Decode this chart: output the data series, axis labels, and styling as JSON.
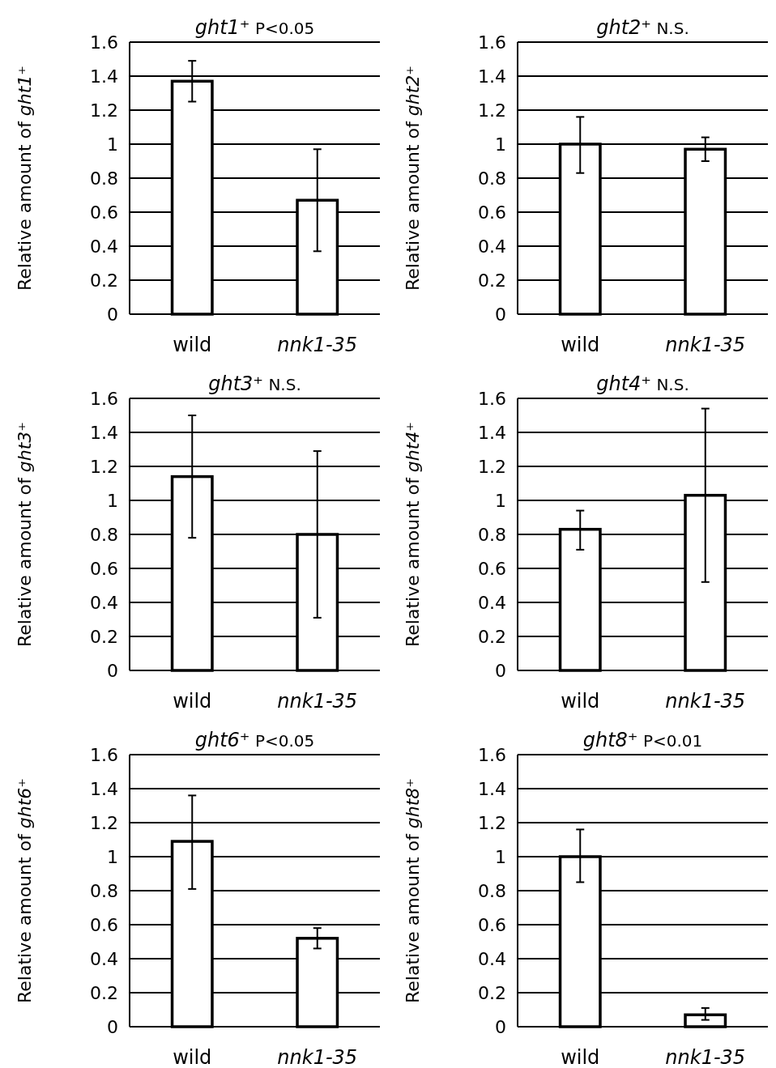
{
  "chart_data": [
    {
      "type": "bar",
      "title": "ght1⁺ P<0.05",
      "ylabel": "Relative amount of ght1⁺",
      "categories": [
        "wild",
        "nnk1-35"
      ],
      "values": [
        1.37,
        0.67
      ],
      "errors": [
        [
          1.25,
          1.49
        ],
        [
          0.37,
          0.97
        ]
      ],
      "color": "#ffffff",
      "ylim": [
        0,
        1.6
      ],
      "yticks": [
        0,
        0.2,
        0.4,
        0.6,
        0.8,
        1,
        1.2,
        1.4,
        1.6
      ],
      "grid": "y"
    },
    {
      "type": "bar",
      "title": "ght2⁺ N.S.",
      "ylabel": "Relative amount of ght2⁺",
      "categories": [
        "wild",
        "nnk1-35"
      ],
      "values": [
        1.0,
        0.97
      ],
      "errors": [
        [
          0.83,
          1.16
        ],
        [
          0.9,
          1.04
        ]
      ],
      "color": "#ffffff",
      "ylim": [
        0,
        1.6
      ],
      "yticks": [
        0,
        0.2,
        0.4,
        0.6,
        0.8,
        1,
        1.2,
        1.4,
        1.6
      ],
      "grid": "y"
    },
    {
      "type": "bar",
      "title": "ght3⁺ N.S.",
      "ylabel": "Relative amount of ght3⁺",
      "categories": [
        "wild",
        "nnk1-35"
      ],
      "values": [
        1.14,
        0.8
      ],
      "errors": [
        [
          0.78,
          1.5
        ],
        [
          0.31,
          1.29
        ]
      ],
      "color": "#ffffff",
      "ylim": [
        0,
        1.6
      ],
      "yticks": [
        0,
        0.2,
        0.4,
        0.6,
        0.8,
        1,
        1.2,
        1.4,
        1.6
      ],
      "grid": "y"
    },
    {
      "type": "bar",
      "title": "ght4⁺ N.S.",
      "ylabel": "Relative amount of ght4⁺",
      "categories": [
        "wild",
        "nnk1-35"
      ],
      "values": [
        0.83,
        1.03
      ],
      "errors": [
        [
          0.71,
          0.94
        ],
        [
          0.52,
          1.54
        ]
      ],
      "color": "#ffffff",
      "ylim": [
        0,
        1.6
      ],
      "yticks": [
        0,
        0.2,
        0.4,
        0.6,
        0.8,
        1,
        1.2,
        1.4,
        1.6
      ],
      "grid": "y"
    },
    {
      "type": "bar",
      "title": "ght6⁺ P<0.05",
      "ylabel": "Relative amount of ght6⁺",
      "categories": [
        "wild",
        "nnk1-35"
      ],
      "values": [
        1.09,
        0.52
      ],
      "errors": [
        [
          0.81,
          1.36
        ],
        [
          0.46,
          0.58
        ]
      ],
      "color": "#ffffff",
      "ylim": [
        0,
        1.6
      ],
      "yticks": [
        0,
        0.2,
        0.4,
        0.6,
        0.8,
        1,
        1.2,
        1.4,
        1.6
      ],
      "grid": "y"
    },
    {
      "type": "bar",
      "title": "ght8⁺ P<0.01",
      "ylabel": "Relative amount of ght8⁺",
      "categories": [
        "wild",
        "nnk1-35"
      ],
      "values": [
        1.0,
        0.07
      ],
      "errors": [
        [
          0.85,
          1.16
        ],
        [
          0.04,
          0.11
        ]
      ],
      "color": "#ffffff",
      "ylim": [
        0,
        1.6
      ],
      "yticks": [
        0,
        0.2,
        0.4,
        0.6,
        0.8,
        1,
        1.2,
        1.4,
        1.6
      ],
      "grid": "y"
    }
  ]
}
